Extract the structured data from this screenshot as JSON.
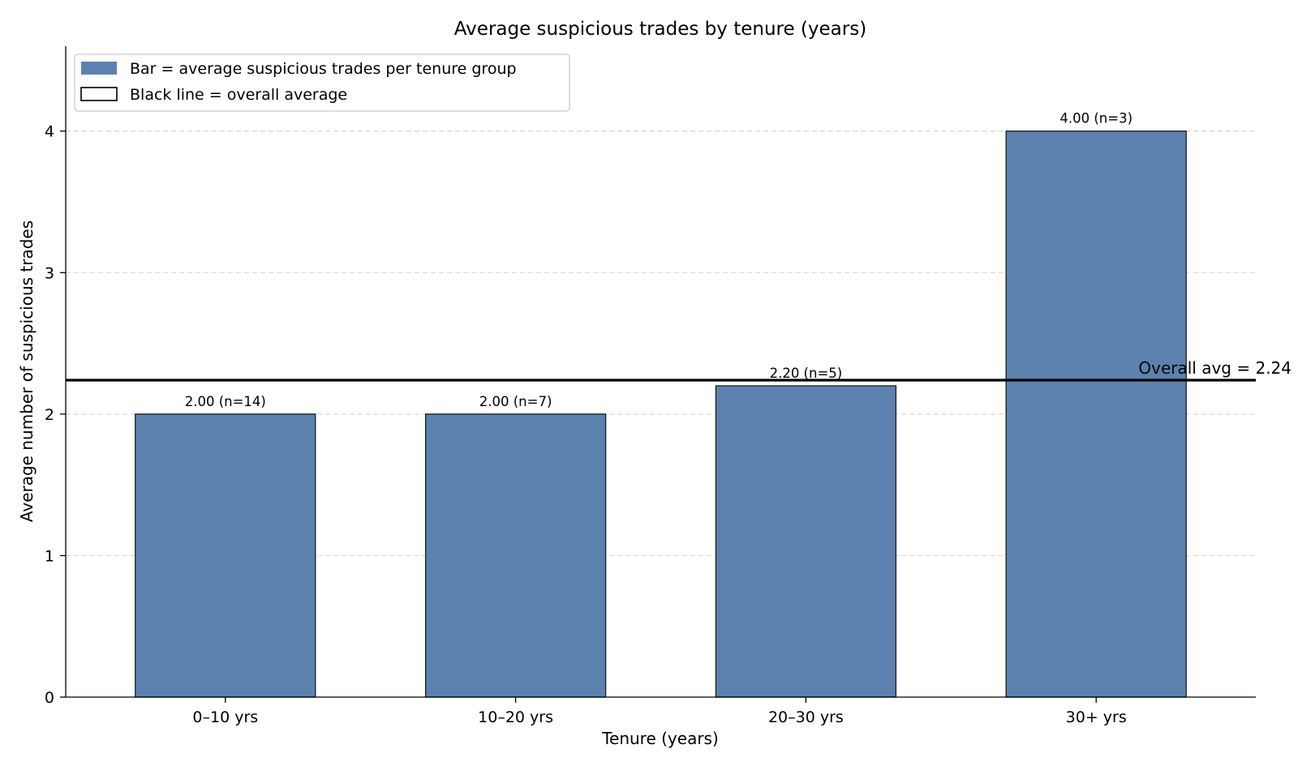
{
  "chart_data": {
    "type": "bar",
    "title": "Average suspicious trades by tenure (years)",
    "xlabel": "Tenure (years)",
    "ylabel": "Average number of suspicious trades",
    "categories": [
      "0–10 yrs",
      "10–20 yrs",
      "20–30 yrs",
      "30+ yrs"
    ],
    "values": [
      2.0,
      2.0,
      2.2,
      4.0
    ],
    "bar_labels": [
      "2.00  (n=14)",
      "2.00  (n=7)",
      "2.20  (n=5)",
      "4.00  (n=3)"
    ],
    "ylim": [
      0,
      4.6
    ],
    "yticks": [
      0,
      1,
      2,
      3,
      4
    ],
    "grid": "horizontal dashed",
    "bar_color": "#5b82ae",
    "reference_line": {
      "value": 2.24,
      "label": "Overall avg = 2.24",
      "color": "#000000"
    },
    "legend": {
      "placement": "top-left",
      "entries": [
        {
          "label": "Bar = average suspicious trades per tenure group",
          "style": "filled"
        },
        {
          "label": "Black line = overall average",
          "style": "outline"
        }
      ]
    }
  }
}
